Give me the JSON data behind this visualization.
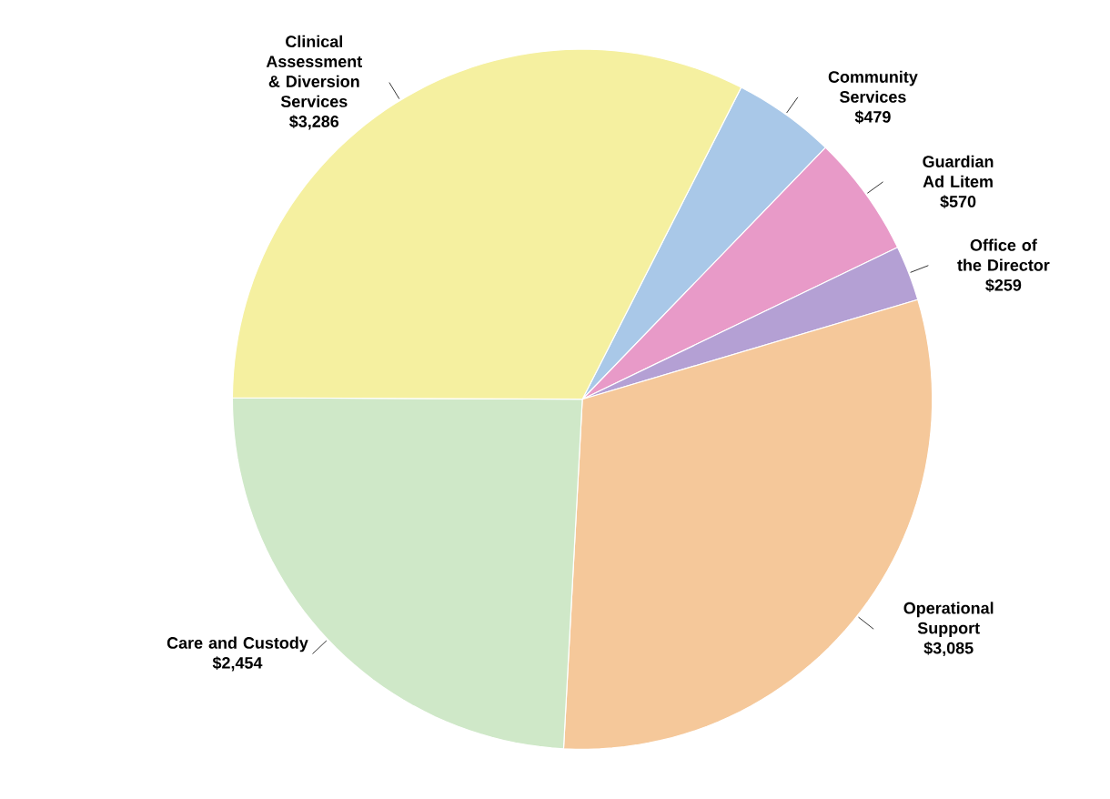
{
  "chart_data": {
    "type": "pie",
    "categories": [
      "Community Services",
      "Guardian Ad Litem",
      "Office of the Director",
      "Operational Support",
      "Care and Custody",
      "Clinical Assessment & Diversion Services"
    ],
    "values": [
      479,
      570,
      259,
      3085,
      2454,
      3286
    ],
    "value_labels": [
      "$479",
      "$570",
      "$259",
      "$3,085",
      "$2,454",
      "$3,286"
    ],
    "colors": [
      "#a9c8e8",
      "#e89ac8",
      "#b4a0d4",
      "#f5c89a",
      "#cfe8c8",
      "#f5f0a0"
    ],
    "legend": false
  }
}
